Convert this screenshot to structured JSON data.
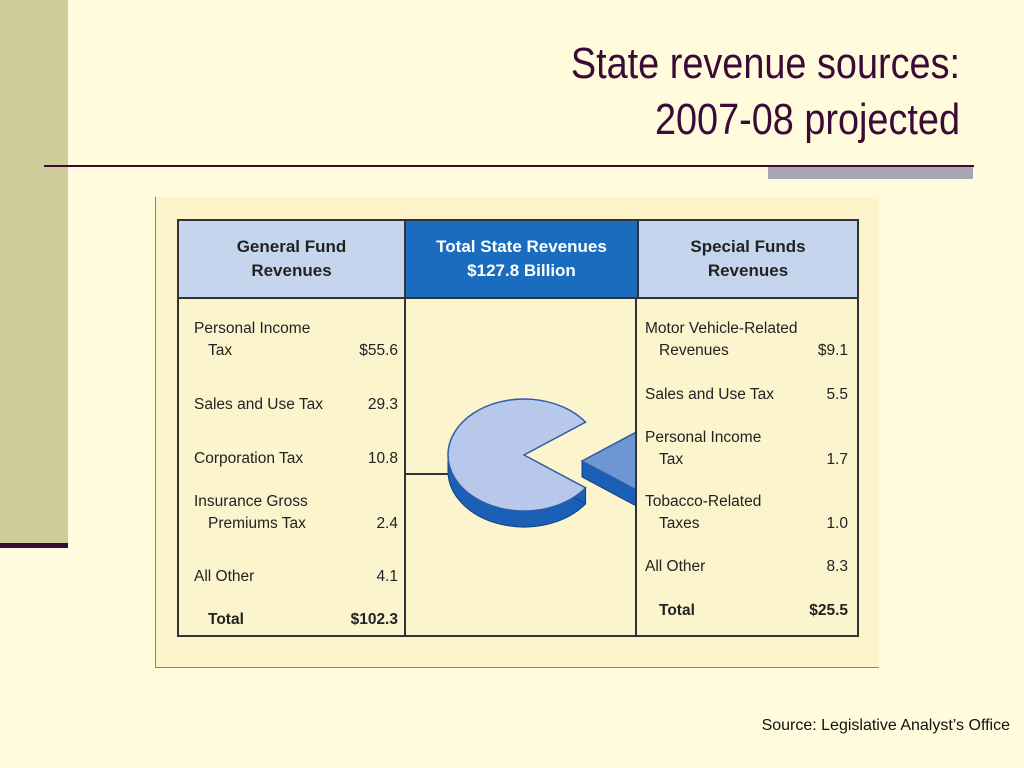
{
  "title": {
    "line1": "State revenue sources:",
    "line2": "2007-08 projected"
  },
  "colors": {
    "pie_top": "#b8c8ea",
    "pie_side": "#1c5fb6",
    "pie_wedge_top": "#6c97d2",
    "header_mid": "#1a6cbf",
    "header_side": "#c6d5ee"
  },
  "chart_data": {
    "type": "table",
    "headers": {
      "general_fund": [
        "General Fund",
        "Revenues"
      ],
      "total": [
        "Total State Revenues",
        "$127.8 Billion"
      ],
      "special_funds": [
        "Special Funds",
        "Revenues"
      ]
    },
    "general_fund": [
      {
        "label": [
          "Personal Income",
          "Tax"
        ],
        "value": "$55.6"
      },
      {
        "label": [
          "Sales and Use Tax"
        ],
        "value": "29.3"
      },
      {
        "label": [
          "Corporation Tax"
        ],
        "value": "10.8"
      },
      {
        "label": [
          "Insurance Gross",
          "Premiums Tax"
        ],
        "value": "2.4"
      },
      {
        "label": [
          "All Other"
        ],
        "value": "4.1"
      }
    ],
    "general_fund_total": {
      "label": "Total",
      "value": "$102.3"
    },
    "special_funds": [
      {
        "label": [
          "Motor Vehicle-Related",
          "Revenues"
        ],
        "value": "$9.1"
      },
      {
        "label": [
          "Sales and Use Tax"
        ],
        "value": "5.5"
      },
      {
        "label": [
          "Personal Income",
          "Tax"
        ],
        "value": "1.7"
      },
      {
        "label": [
          "Tobacco-Related",
          "Taxes"
        ],
        "value": "1.0"
      },
      {
        "label": [
          "All Other"
        ],
        "value": "8.3"
      }
    ],
    "special_funds_total": {
      "label": "Total",
      "value": "$25.5"
    },
    "pie": {
      "type": "pie",
      "slices": [
        {
          "name": "General Fund Revenues",
          "value": 102.3
        },
        {
          "name": "Special Funds Revenues",
          "value": 25.5
        }
      ]
    }
  },
  "source": "Source: Legislative Analyst’s Office"
}
